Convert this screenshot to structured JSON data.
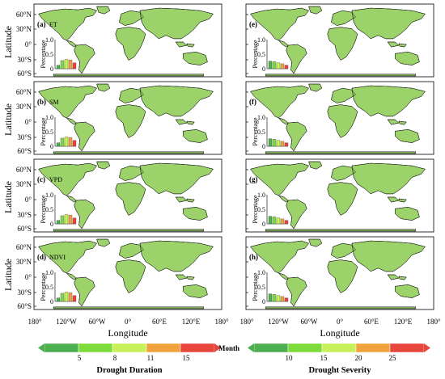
{
  "figure": {
    "y_axis_label": "Latitude",
    "x_axis_label": "Longitude",
    "lat_ticks": [
      "60°N",
      "30°N",
      "0°",
      "30°S",
      "60°S"
    ],
    "lon_ticks": [
      "180°",
      "120°W",
      "60°W",
      "0°",
      "60°E",
      "120°E",
      "180°"
    ]
  },
  "panels": [
    {
      "letter": "(a)",
      "variable": "ET",
      "column": "duration"
    },
    {
      "letter": "(e)",
      "variable": "",
      "column": "severity"
    },
    {
      "letter": "(b)",
      "variable": "SM",
      "column": "duration"
    },
    {
      "letter": "(f)",
      "variable": "",
      "column": "severity"
    },
    {
      "letter": "(c)",
      "variable": "VPD",
      "column": "duration"
    },
    {
      "letter": "(g)",
      "variable": "",
      "column": "severity"
    },
    {
      "letter": "(d)",
      "variable": "NDVI",
      "column": "duration"
    },
    {
      "letter": "(h)",
      "variable": "",
      "column": "severity"
    }
  ],
  "inset": {
    "y_label": "Percentage",
    "y_ticks": [
      "0",
      "0.5",
      "1.0"
    ],
    "duration_values": [
      0.12,
      0.28,
      0.32,
      0.3,
      0.2
    ],
    "severity_values": [
      0.26,
      0.24,
      0.2,
      0.17,
      0.12
    ]
  },
  "colorbars": {
    "duration": {
      "title": "Drought Duration",
      "unit": "Month",
      "ticks": [
        "5",
        "8",
        "11",
        "15"
      ],
      "colors": [
        "#4caf50",
        "#7ddc3a",
        "#c8f05a",
        "#f2a23c",
        "#e8453c"
      ]
    },
    "severity": {
      "title": "Drought Severity",
      "ticks": [
        "10",
        "15",
        "20",
        "25"
      ],
      "colors": [
        "#4caf50",
        "#7ddc3a",
        "#c8f05a",
        "#f2a23c",
        "#e8453c"
      ]
    }
  },
  "colors": {
    "land_outline": "#111111",
    "background": "#ffffff"
  }
}
